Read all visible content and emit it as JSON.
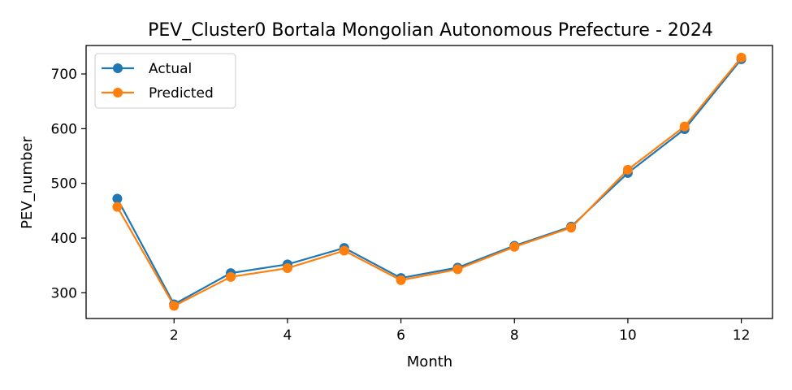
{
  "chart_data": {
    "type": "line",
    "title": "PEV_Cluster0 Bortala Mongolian Autonomous Prefecture - 2024",
    "xlabel": "Month",
    "ylabel": "PEV_number",
    "x": [
      1,
      2,
      3,
      4,
      5,
      6,
      7,
      8,
      9,
      10,
      11,
      12
    ],
    "xlim": [
      0.45,
      12.55
    ],
    "ylim": [
      253,
      752
    ],
    "xticks": [
      2,
      4,
      6,
      8,
      10,
      12
    ],
    "yticks": [
      300,
      400,
      500,
      600,
      700
    ],
    "grid": false,
    "legend_position": "upper-left",
    "series": [
      {
        "name": "Actual",
        "color": "#1f77b4",
        "marker": "circle",
        "values": [
          472,
          279,
          336,
          352,
          382,
          327,
          346,
          386,
          421,
          519,
          599,
          727
        ]
      },
      {
        "name": "Predicted",
        "color": "#ff7f0e",
        "marker": "circle",
        "values": [
          457,
          276,
          329,
          345,
          377,
          323,
          343,
          384,
          419,
          525,
          604,
          730
        ]
      }
    ]
  }
}
